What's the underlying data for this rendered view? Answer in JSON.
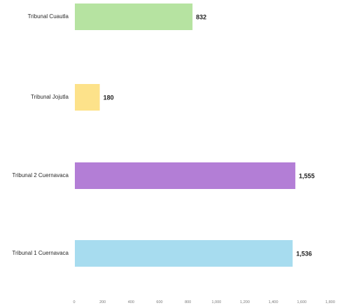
{
  "chart_data": {
    "type": "bar",
    "orientation": "horizontal",
    "categories": [
      "Tribunal Cuautla",
      "Tribunal Jojutla",
      "Tribunal 2 Cuernavaca",
      "Tribunal 1 Cuernavaca"
    ],
    "values": [
      832,
      180,
      1555,
      1536
    ],
    "value_labels": [
      "832",
      "180",
      "1,555",
      "1,536"
    ],
    "colors": [
      "#b6e3a1",
      "#fde28a",
      "#b37ed6",
      "#a7dcef"
    ],
    "xlim": [
      0,
      1800
    ],
    "x_ticks": [
      "0",
      "200",
      "400",
      "600",
      "800",
      "1,000",
      "1,200",
      "1,400",
      "1,600",
      "1,800"
    ],
    "title": "",
    "xlabel": "",
    "ylabel": "",
    "grid": false,
    "legend": "none"
  }
}
